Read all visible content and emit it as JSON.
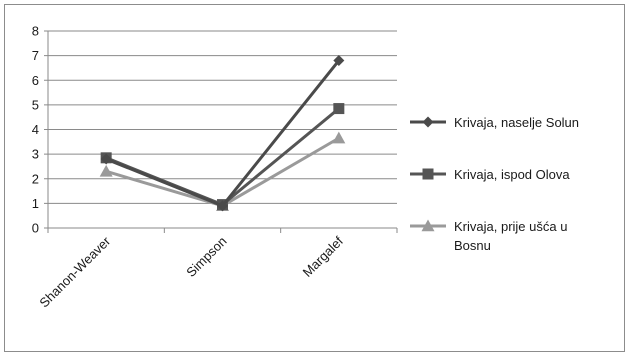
{
  "chart_data": {
    "type": "line",
    "categories": [
      "Shanon-Weaver",
      "Simpson",
      "Margalef"
    ],
    "ylim": [
      0,
      8
    ],
    "yticks": [
      0,
      1,
      2,
      3,
      4,
      5,
      6,
      7,
      8
    ],
    "grid": true,
    "legend_position": "right",
    "series": [
      {
        "name": "Krivaja, naselje Solun",
        "values": [
          2.8,
          0.9,
          6.8
        ],
        "color": "#4a4a4a",
        "marker": "diamond"
      },
      {
        "name": "Krivaja, ispod Olova",
        "values": [
          2.85,
          0.95,
          4.85
        ],
        "color": "#555555",
        "marker": "square"
      },
      {
        "name": "Krivaja, prije ušća u Bosnu",
        "name_lines": [
          "Krivaja, prije ušća u",
          "Bosnu"
        ],
        "values": [
          2.3,
          0.9,
          3.65
        ],
        "color": "#9a9a9a",
        "marker": "triangle"
      }
    ]
  }
}
